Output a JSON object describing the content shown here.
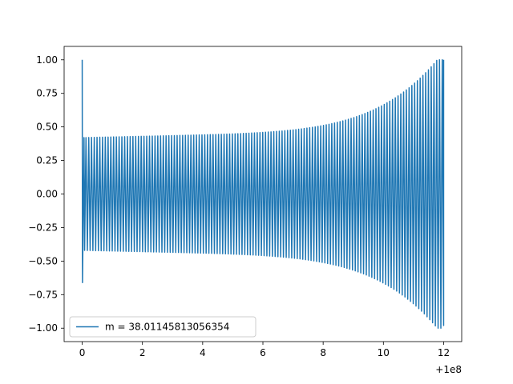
{
  "chart_data": {
    "type": "line",
    "title": "",
    "xlabel": "",
    "ylabel": "",
    "x_offset_label": "+1e8",
    "xlim": [
      -0.6,
      12.6
    ],
    "ylim": [
      -1.1,
      1.1
    ],
    "x_ticks": [
      0,
      2,
      4,
      6,
      8,
      10,
      12
    ],
    "x_tick_labels": [
      "0",
      "2",
      "4",
      "6",
      "8",
      "10",
      "12"
    ],
    "y_ticks": [
      -1.0,
      -0.75,
      -0.5,
      -0.25,
      0.0,
      0.25,
      0.5,
      0.75,
      1.0
    ],
    "y_tick_labels": [
      "−1.00",
      "−0.75",
      "−0.50",
      "−0.25",
      "0.00",
      "0.25",
      "0.50",
      "0.75",
      "1.00"
    ],
    "grid": false,
    "legend_position": "lower-left",
    "series": [
      {
        "name": "m = 38.01145813056354",
        "color": "#1f77b4",
        "x_range": [
          0,
          12
        ],
        "start_value": 1.0,
        "first_trough": -0.66,
        "initial_amplitude": 0.42,
        "final_amplitude": 1.0,
        "oscillation_cycles": 130
      }
    ]
  }
}
